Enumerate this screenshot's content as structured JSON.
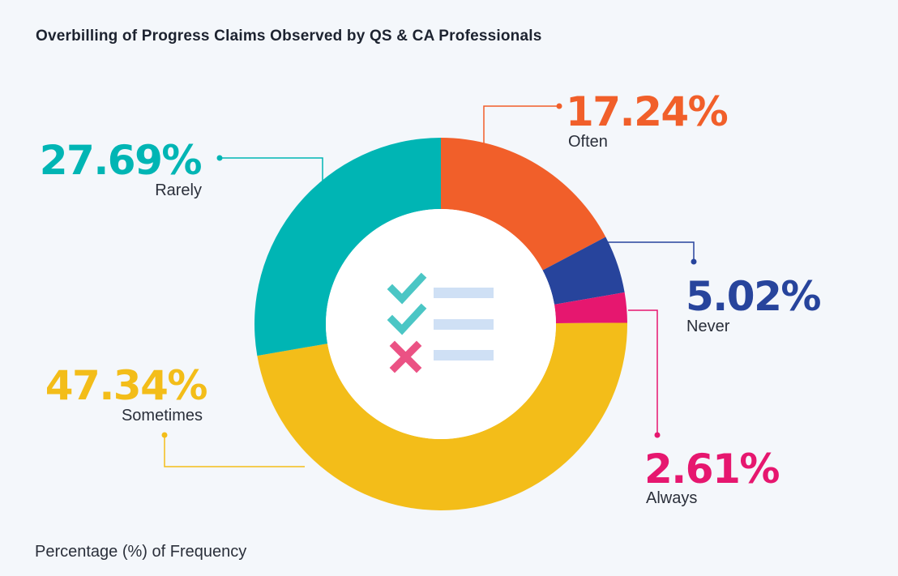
{
  "title": "Overbilling of Progress Claims Observed by QS & CA Professionals",
  "footnote": "Percentage (%) of Frequency",
  "colors": {
    "Often": "#f15f2a",
    "Never": "#27449c",
    "Always": "#e6176f",
    "Sometimes": "#f3bd19",
    "Rarely": "#00b5b4",
    "background": "#f4f7fb"
  },
  "center_icon": {
    "name": "checklist-icon",
    "items": [
      "check",
      "check",
      "cross"
    ]
  },
  "chart_data": {
    "type": "pie",
    "donut": true,
    "title": "Overbilling of Progress Claims Observed by QS & CA Professionals",
    "categories": [
      "Often",
      "Never",
      "Always",
      "Sometimes",
      "Rarely"
    ],
    "values": [
      17.24,
      5.02,
      2.61,
      47.34,
      27.69
    ],
    "value_labels": [
      "17.24%",
      "5.02%",
      "2.61%",
      "47.34%",
      "27.69%"
    ],
    "start_angle_deg": 0,
    "direction": "clockwise",
    "legend": "none",
    "caption": "Percentage (%) of Frequency"
  }
}
